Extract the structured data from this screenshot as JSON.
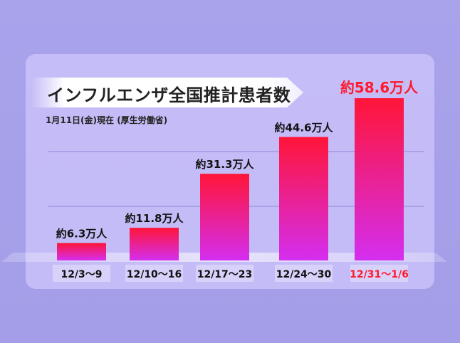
{
  "chart_data": {
    "type": "bar",
    "title": "インフルエンザ全国推計患者数",
    "subtitle": "1月11日(金)現在 (厚生労働省)",
    "categories": [
      "12/3～9",
      "12/10～16",
      "12/17～23",
      "12/24～30",
      "12/31～1/6"
    ],
    "values": [
      6.3,
      11.8,
      31.3,
      44.6,
      58.6
    ],
    "value_labels": [
      "約6.3万人",
      "約11.8万人",
      "約31.3万人",
      "約44.6万人",
      "約58.6万人"
    ],
    "unit": "万人",
    "ylim": [
      0,
      60
    ],
    "grid": true,
    "colors": {
      "bar_top": "#ff1538",
      "bar_bottom": "#d42ef0",
      "highlight_text": "#ff1a2e",
      "normal_text": "#111111"
    },
    "highlight_index": 4
  }
}
